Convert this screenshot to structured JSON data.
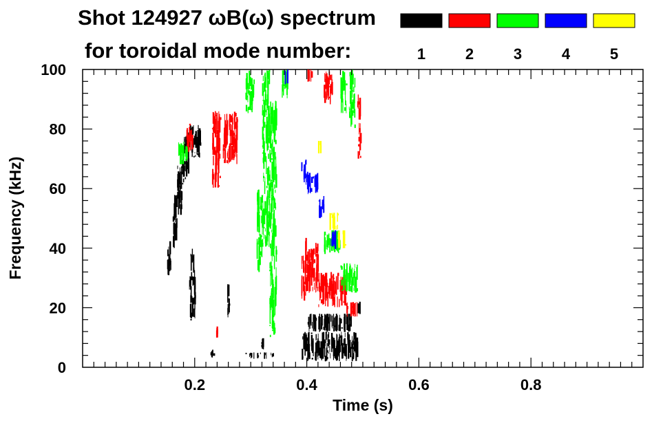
{
  "chart_data": {
    "type": "heatmap",
    "title_line1": "Shot 124927 ωB(ω) spectrum",
    "title_line2": "for toroidal mode number:",
    "xlabel": "Time (s)",
    "ylabel": "Frequency (kHz)",
    "xlim": [
      0.0,
      1.0
    ],
    "ylim": [
      0,
      100
    ],
    "x_ticks": [
      0.2,
      0.4,
      0.6,
      0.8
    ],
    "x_tick_labels": [
      "0.2",
      "0.4",
      "0.6",
      "0.8"
    ],
    "y_ticks": [
      0,
      20,
      40,
      60,
      80,
      100
    ],
    "y_tick_labels": [
      "0",
      "20",
      "40",
      "60",
      "80",
      "100"
    ],
    "legend": [
      {
        "label": "1",
        "color": "#000000"
      },
      {
        "label": "2",
        "color": "#ff0000"
      },
      {
        "label": "3",
        "color": "#00ff00"
      },
      {
        "label": "4",
        "color": "#0000ff"
      },
      {
        "label": "5",
        "color": "#ffff00"
      }
    ],
    "series": [
      {
        "name": "n=1",
        "mode": 1,
        "color": "#000000",
        "blobs": [
          {
            "t": [
              0.15,
              0.157
            ],
            "f": [
              30,
              44
            ]
          },
          {
            "t": [
              0.16,
              0.168
            ],
            "f": [
              40,
              58
            ]
          },
          {
            "t": [
              0.168,
              0.178
            ],
            "f": [
              50,
              70
            ]
          },
          {
            "t": [
              0.178,
              0.188
            ],
            "f": [
              62,
              78
            ]
          },
          {
            "t": [
              0.188,
              0.21
            ],
            "f": [
              70,
              82
            ]
          },
          {
            "t": [
              0.19,
              0.2
            ],
            "f": [
              15,
              40
            ]
          },
          {
            "t": [
              0.228,
              0.234
            ],
            "f": [
              3,
              6
            ]
          },
          {
            "t": [
              0.258,
              0.262
            ],
            "f": [
              16,
              28
            ]
          },
          {
            "t": [
              0.29,
              0.34
            ],
            "f": [
              3,
              5
            ]
          },
          {
            "t": [
              0.318,
              0.322
            ],
            "f": [
              6,
              10
            ]
          },
          {
            "t": [
              0.39,
              0.49
            ],
            "f": [
              2,
              12
            ]
          },
          {
            "t": [
              0.4,
              0.48
            ],
            "f": [
              12,
              18
            ]
          },
          {
            "t": [
              0.49,
              0.496
            ],
            "f": [
              18,
              22
            ]
          }
        ]
      },
      {
        "name": "n=2",
        "mode": 2,
        "color": "#ff0000",
        "blobs": [
          {
            "t": [
              0.185,
              0.195
            ],
            "f": [
              72,
              82
            ]
          },
          {
            "t": [
              0.23,
              0.245
            ],
            "f": [
              60,
              86
            ]
          },
          {
            "t": [
              0.25,
              0.275
            ],
            "f": [
              68,
              86
            ]
          },
          {
            "t": [
              0.235,
              0.24
            ],
            "f": [
              10,
              14
            ]
          },
          {
            "t": [
              0.39,
              0.398
            ],
            "f": [
              22,
              44
            ]
          },
          {
            "t": [
              0.398,
              0.42
            ],
            "f": [
              25,
              42
            ]
          },
          {
            "t": [
              0.42,
              0.47
            ],
            "f": [
              20,
              32
            ]
          },
          {
            "t": [
              0.47,
              0.49
            ],
            "f": [
              17,
              22
            ]
          },
          {
            "t": [
              0.4,
              0.41
            ],
            "f": [
              96,
              100
            ]
          },
          {
            "t": [
              0.43,
              0.445
            ],
            "f": [
              88,
              100
            ]
          },
          {
            "t": [
              0.49,
              0.495
            ],
            "f": [
              70,
              92
            ]
          }
        ]
      },
      {
        "name": "n=3",
        "mode": 3,
        "color": "#00ff00",
        "blobs": [
          {
            "t": [
              0.17,
              0.185
            ],
            "f": [
              68,
              76
            ]
          },
          {
            "t": [
              0.29,
              0.305
            ],
            "f": [
              85,
              100
            ]
          },
          {
            "t": [
              0.31,
              0.32
            ],
            "f": [
              30,
              60
            ]
          },
          {
            "t": [
              0.32,
              0.333
            ],
            "f": [
              40,
              100
            ]
          },
          {
            "t": [
              0.333,
              0.345
            ],
            "f": [
              10,
              90
            ]
          },
          {
            "t": [
              0.355,
              0.365
            ],
            "f": [
              90,
              100
            ]
          },
          {
            "t": [
              0.43,
              0.46
            ],
            "f": [
              38,
              46
            ]
          },
          {
            "t": [
              0.46,
              0.49
            ],
            "f": [
              25,
              35
            ]
          },
          {
            "t": [
              0.46,
              0.47
            ],
            "f": [
              85,
              100
            ]
          },
          {
            "t": [
              0.475,
              0.485
            ],
            "f": [
              80,
              100
            ]
          }
        ]
      },
      {
        "name": "n=4",
        "mode": 4,
        "color": "#0000ff",
        "blobs": [
          {
            "t": [
              0.39,
              0.398
            ],
            "f": [
              62,
              70
            ]
          },
          {
            "t": [
              0.398,
              0.42
            ],
            "f": [
              58,
              66
            ]
          },
          {
            "t": [
              0.42,
              0.43
            ],
            "f": [
              50,
              58
            ]
          },
          {
            "t": [
              0.44,
              0.45
            ],
            "f": [
              40,
              46
            ]
          },
          {
            "t": [
              0.36,
              0.365
            ],
            "f": [
              95,
              100
            ]
          }
        ]
      },
      {
        "name": "n=5",
        "mode": 5,
        "color": "#ffff00",
        "blobs": [
          {
            "t": [
              0.44,
              0.455
            ],
            "f": [
              46,
              52
            ]
          },
          {
            "t": [
              0.455,
              0.47
            ],
            "f": [
              40,
              46
            ]
          },
          {
            "t": [
              0.42,
              0.425
            ],
            "f": [
              72,
              76
            ]
          }
        ]
      }
    ]
  }
}
